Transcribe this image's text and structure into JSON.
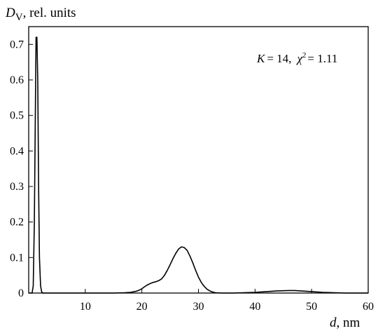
{
  "chart_data": {
    "type": "line",
    "ylabel": {
      "symbol": "D",
      "subscript": "V",
      "rest": ", rel. units"
    },
    "xlabel": {
      "symbol": "d",
      "rest": ", nm"
    },
    "xlim": [
      0,
      60
    ],
    "ylim": [
      0,
      0.75
    ],
    "x_ticks": [
      10,
      20,
      30,
      40,
      50,
      60
    ],
    "y_ticks": [
      0,
      0.1,
      0.2,
      0.3,
      0.4,
      0.5,
      0.6,
      0.7
    ],
    "y_tick_labels": [
      "0",
      "0.1",
      "0.2",
      "0.3",
      "0.4",
      "0.5",
      "0.6",
      "0.7"
    ],
    "annotation": {
      "k_part": "K",
      "k_value": "= 14,",
      "chi_symbol": "χ",
      "chi_sup": "2",
      "chi_value": "= 1.11"
    },
    "grid": false,
    "series": [
      {
        "x": [
          0.0,
          0.6,
          0.8,
          1.0,
          1.2,
          1.3,
          1.45,
          1.6,
          1.75,
          1.9,
          2.1,
          2.3,
          2.5,
          3,
          5,
          10,
          15,
          17,
          18,
          19,
          19.5,
          20,
          20.5,
          21,
          21.5,
          22,
          22.5,
          23,
          23.5,
          24,
          24.5,
          25,
          25.5,
          26,
          26.5,
          27,
          27.5,
          28,
          28.5,
          29,
          29.5,
          30,
          30.5,
          31,
          31.5,
          32,
          32.5,
          33,
          34,
          35,
          36,
          38,
          40,
          42,
          44,
          46,
          47,
          48,
          50,
          52,
          54,
          56,
          58,
          60
        ],
        "y": [
          0.0,
          0.0,
          0.02,
          0.2,
          0.55,
          0.72,
          0.72,
          0.6,
          0.3,
          0.1,
          0.02,
          0.003,
          0.0,
          0.0,
          0.0,
          0.0,
          0.0,
          0.001,
          0.002,
          0.005,
          0.008,
          0.012,
          0.018,
          0.023,
          0.027,
          0.03,
          0.032,
          0.035,
          0.04,
          0.05,
          0.064,
          0.08,
          0.097,
          0.112,
          0.124,
          0.13,
          0.128,
          0.12,
          0.104,
          0.085,
          0.064,
          0.045,
          0.03,
          0.019,
          0.011,
          0.006,
          0.003,
          0.001,
          0.0,
          0.0,
          0.0,
          0.001,
          0.002,
          0.004,
          0.006,
          0.007,
          0.007,
          0.006,
          0.004,
          0.002,
          0.001,
          0.0,
          0.0,
          0.0
        ]
      }
    ]
  }
}
